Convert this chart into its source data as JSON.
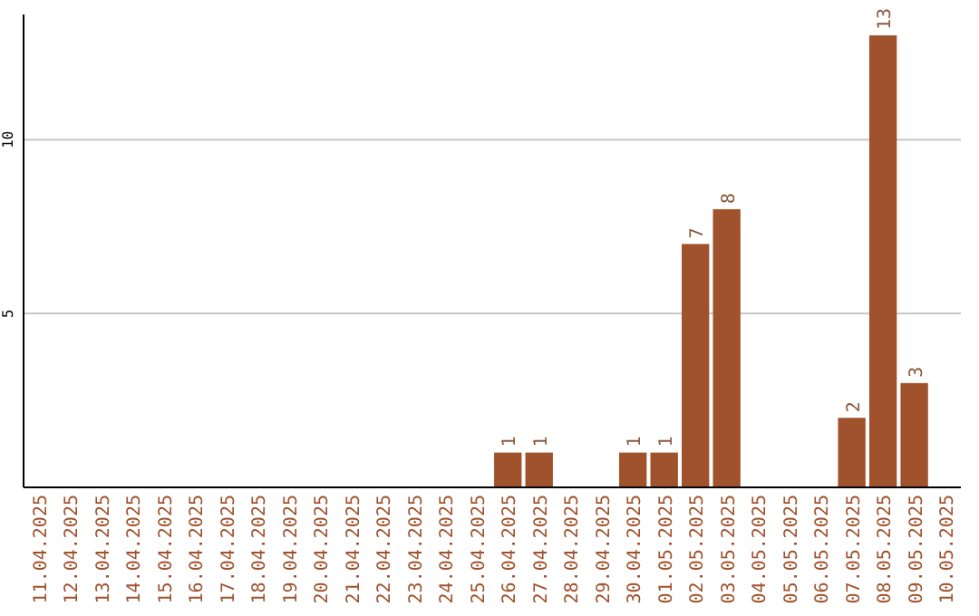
{
  "chart_data": {
    "type": "bar",
    "categories": [
      "11.04.2025",
      "12.04.2025",
      "13.04.2025",
      "14.04.2025",
      "15.04.2025",
      "16.04.2025",
      "17.04.2025",
      "18.04.2025",
      "19.04.2025",
      "20.04.2025",
      "21.04.2025",
      "22.04.2025",
      "23.04.2025",
      "24.04.2025",
      "25.04.2025",
      "26.04.2025",
      "27.04.2025",
      "28.04.2025",
      "29.04.2025",
      "30.04.2025",
      "01.05.2025",
      "02.05.2025",
      "03.05.2025",
      "04.05.2025",
      "05.05.2025",
      "06.05.2025",
      "07.05.2025",
      "08.05.2025",
      "09.05.2025",
      "10.05.2025"
    ],
    "values": [
      0,
      0,
      0,
      0,
      0,
      0,
      0,
      0,
      0,
      0,
      0,
      0,
      0,
      0,
      0,
      1,
      1,
      0,
      0,
      1,
      1,
      7,
      8,
      0,
      0,
      0,
      2,
      13,
      3,
      0
    ],
    "value_labels": [
      null,
      null,
      null,
      null,
      null,
      null,
      null,
      null,
      null,
      null,
      null,
      null,
      null,
      null,
      null,
      "1",
      "1",
      null,
      null,
      "1",
      "1",
      "7",
      "8",
      null,
      null,
      null,
      "2",
      "13",
      "3",
      null
    ],
    "color": "#a0522d",
    "ylim": [
      0,
      13.6
    ],
    "yticks": [
      5,
      10
    ],
    "grid": "y"
  }
}
